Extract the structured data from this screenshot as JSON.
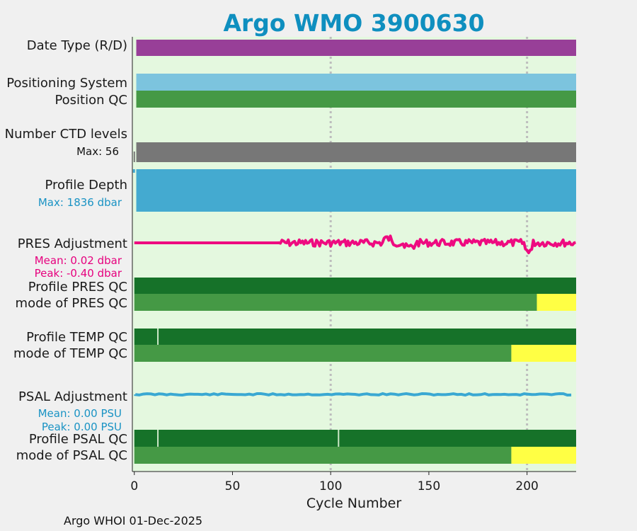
{
  "chart_data": {
    "type": "bar",
    "title": "Argo WMO 3900630",
    "xlabel": "Cycle Number",
    "xlim": [
      -1,
      225
    ],
    "xticks": [
      0,
      50,
      100,
      150,
      200
    ],
    "grid_x": [
      100,
      200
    ],
    "colors": {
      "plot_bg": "#e4f8df",
      "date_type": "#983f98",
      "positioning": "#7cc4de",
      "good": "#459945",
      "good_dark": "#167229",
      "ctd": "#777777",
      "depth": "#44aad0",
      "pres": "#ee0a80",
      "psal": "#3aa8d2",
      "probably_good": "#ffff44",
      "grid": "#bdbdbd"
    },
    "rows": {
      "date_type": {
        "label": "Date Type (R/D)",
        "segments": [
          [
            1,
            225,
            "date_type"
          ]
        ]
      },
      "positioning": {
        "label": "Positioning System",
        "segments": [
          [
            1,
            225,
            "positioning"
          ]
        ]
      },
      "position_qc": {
        "label": "Position QC",
        "segments": [
          [
            1,
            225,
            "good"
          ]
        ]
      },
      "ctd_levels": {
        "label": "Number CTD levels",
        "sub": "Max: 56",
        "segments": [
          [
            1,
            225,
            "ctd"
          ]
        ]
      },
      "profile_depth": {
        "label": "Profile Depth",
        "sub": "Max: 1836 dbar",
        "segments": [
          [
            1,
            225,
            "depth"
          ]
        ]
      },
      "pres_adjustment": {
        "label": "PRES Adjustment",
        "mean": "Mean: 0.02 dbar",
        "peak": "Peak: -0.40 dbar"
      },
      "profile_pres_qc": {
        "label": "Profile PRES QC",
        "segments": [
          [
            0,
            225,
            "good_dark"
          ]
        ]
      },
      "mode_pres_qc": {
        "label": "mode of PRES QC",
        "segments": [
          [
            0,
            205,
            "good"
          ],
          [
            205,
            225,
            "probably_good"
          ]
        ]
      },
      "profile_temp_qc": {
        "label": "Profile TEMP QC",
        "segments": [
          [
            0,
            225,
            "good_dark"
          ]
        ],
        "markers": [
          12
        ]
      },
      "mode_temp_qc": {
        "label": "mode of TEMP QC",
        "segments": [
          [
            0,
            192,
            "good"
          ],
          [
            192,
            225,
            "probably_good"
          ]
        ]
      },
      "psal_adjustment": {
        "label": "PSAL Adjustment",
        "mean": "Mean: 0.00 PSU",
        "peak": "Peak: 0.00 PSU"
      },
      "profile_psal_qc": {
        "label": "Profile PSAL QC",
        "segments": [
          [
            0,
            225,
            "good_dark"
          ]
        ],
        "markers": [
          12,
          104
        ]
      },
      "mode_psal_qc": {
        "label": "mode of PSAL QC",
        "segments": [
          [
            0,
            192,
            "good"
          ],
          [
            192,
            225,
            "probably_good"
          ]
        ]
      }
    }
  },
  "footer": "Argo WHOI 01-Dec-2025"
}
